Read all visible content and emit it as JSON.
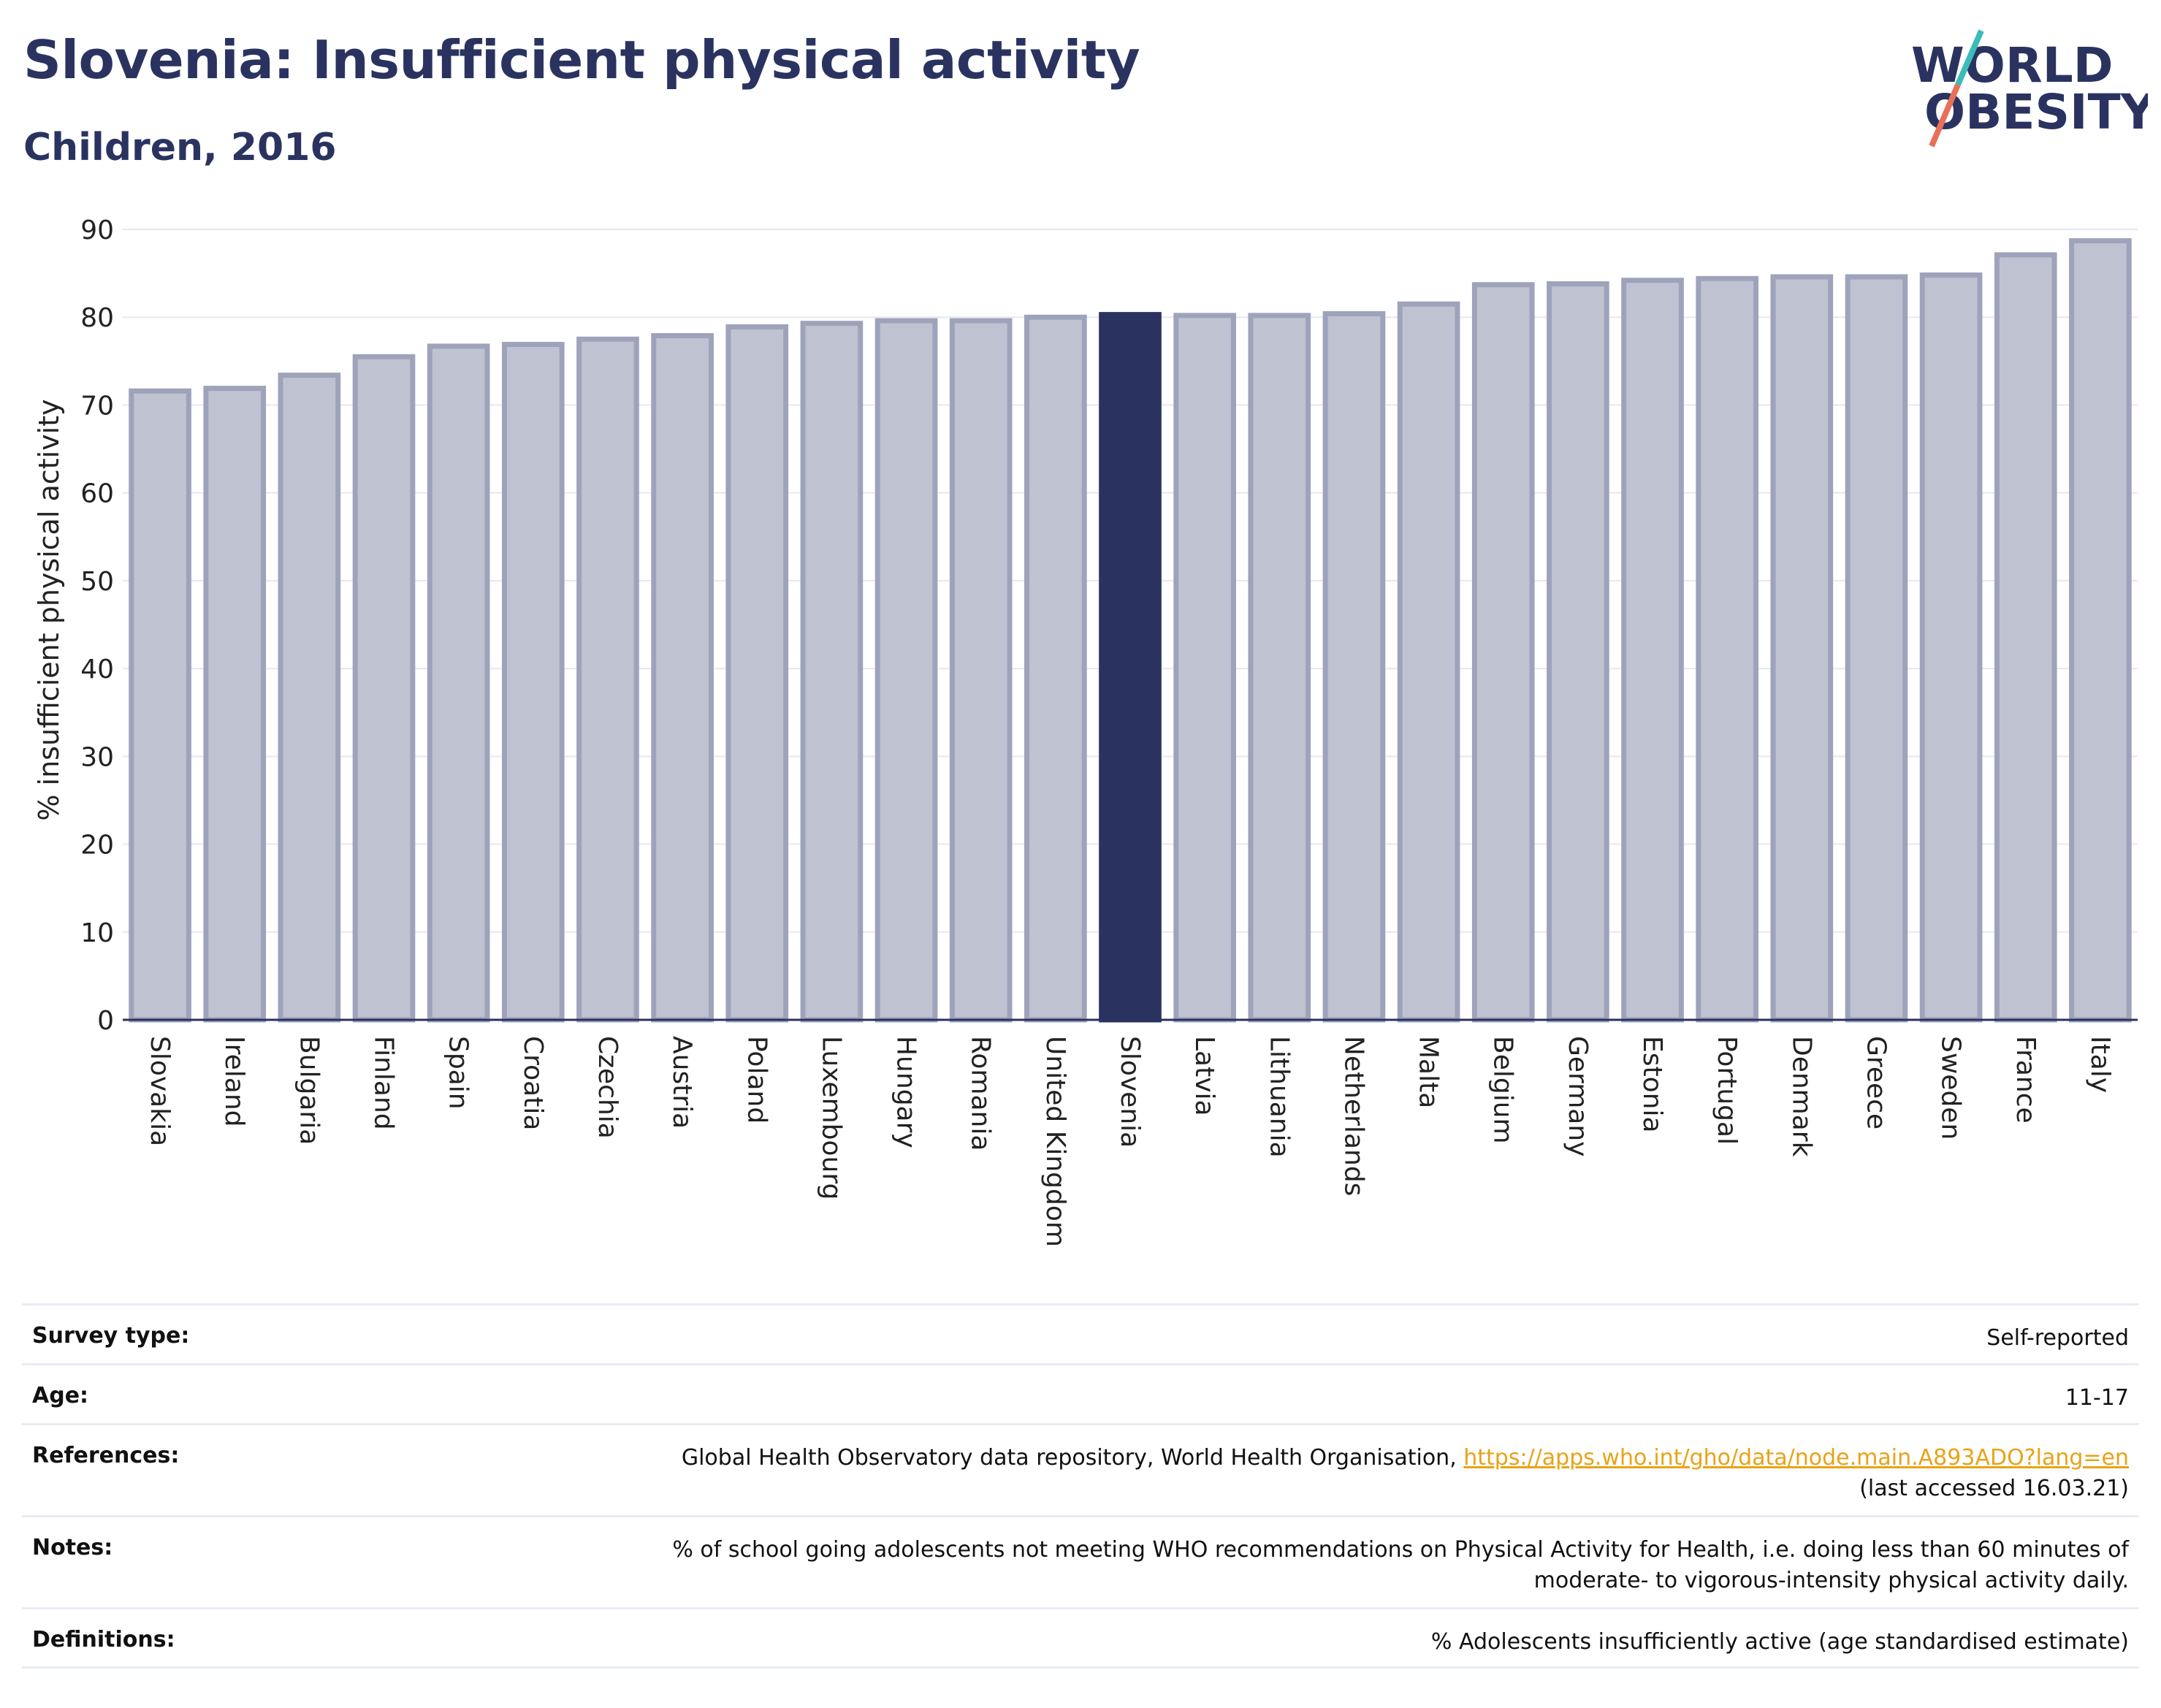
{
  "header": {
    "title": "Slovenia: Insufficient physical activity",
    "subtitle": "Children, 2016"
  },
  "logo": {
    "line1": "WORLD",
    "line2": "OBESITY"
  },
  "colors": {
    "highlight": "#2a3360",
    "bar_fill": "#bfc2d1",
    "bar_stroke": "#9ea3bb",
    "grid": "#e6e8ef",
    "logo_teal": "#3bbcb8",
    "logo_coral": "#e8705a",
    "link": "#e8a317"
  },
  "chart_data": {
    "type": "bar",
    "categories": [
      "Slovakia",
      "Ireland",
      "Bulgaria",
      "Finland",
      "Spain",
      "Croatia",
      "Czechia",
      "Austria",
      "Poland",
      "Luxembourg",
      "Hungary",
      "Romania",
      "United Kingdom",
      "Slovenia",
      "Latvia",
      "Lithuania",
      "Netherlands",
      "Malta",
      "Belgium",
      "Germany",
      "Estonia",
      "Portugal",
      "Denmark",
      "Greece",
      "Sweden",
      "France",
      "Italy"
    ],
    "values": [
      71.6,
      71.9,
      73.4,
      75.5,
      76.7,
      76.9,
      77.5,
      77.9,
      78.9,
      79.3,
      79.6,
      79.6,
      80.0,
      80.3,
      80.2,
      80.2,
      80.4,
      81.5,
      83.7,
      83.8,
      84.2,
      84.4,
      84.6,
      84.6,
      84.8,
      87.1,
      88.7
    ],
    "highlight": "Slovenia",
    "ylabel": "% insufficient physical activity",
    "ylim": [
      0,
      90
    ],
    "yticks": [
      0,
      10,
      20,
      30,
      40,
      50,
      60,
      70,
      80,
      90
    ],
    "grid": true
  },
  "info_table": [
    {
      "key": "Survey type:",
      "value": "Self-reported"
    },
    {
      "key": "Age:",
      "value": "11-17"
    },
    {
      "key": "References:",
      "value": "Global Health Observatory data repository, World Health Organisation, ",
      "link": "https://apps.who.int/gho/data/node.main.A893ADO?lang=en",
      "value2": "(last accessed 16.03.21)"
    },
    {
      "key": "Notes:",
      "value": "% of school going adolescents not meeting WHO recommendations on Physical Activity for Health, i.e. doing less than 60 minutes of",
      "value2": "moderate- to vigorous-intensity physical activity daily."
    },
    {
      "key": "Definitions:",
      "value": "% Adolescents insufficiently active (age standardised estimate)"
    }
  ]
}
